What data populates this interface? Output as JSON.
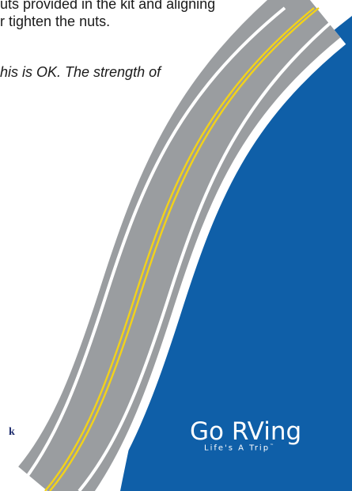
{
  "document": {
    "lines": [
      "uts provided in the kit and aligning",
      "r tighten the nuts.",
      "his is OK.  The strength of"
    ],
    "footer_fragment": "k"
  },
  "logo": {
    "title": "Go RVing",
    "tagline": "Life's A Trip",
    "trademark": "™"
  },
  "colors": {
    "blue": "#0f5fa8",
    "road_gray": "#9a9da0",
    "edge_white": "#ffffff",
    "center_yellow": "#f2d21a",
    "footer_text": "#1f2d6e"
  }
}
